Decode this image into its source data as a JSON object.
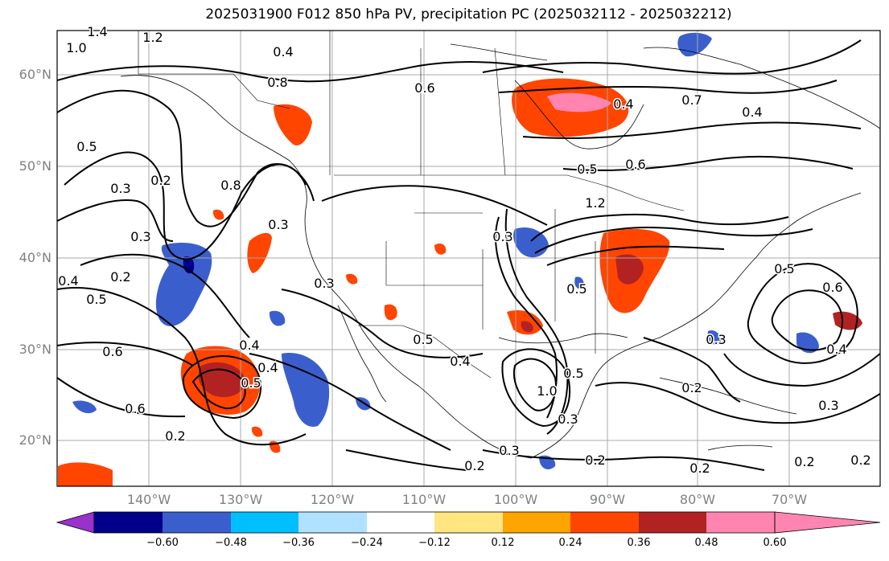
{
  "title": "2025031900 F012 850 hPa PV, precipitation PC (2025032112 - 2025032212)",
  "axes": {
    "lat_ticks": [
      "60°N",
      "50°N",
      "40°N",
      "30°N",
      "20°N"
    ],
    "lon_ticks": [
      "140°W",
      "130°W",
      "120°W",
      "110°W",
      "100°W",
      "90°W",
      "80°W",
      "70°W"
    ]
  },
  "colorbar": {
    "ticks": [
      "−0.60",
      "−0.48",
      "−0.36",
      "−0.24",
      "−0.12",
      "0.12",
      "0.24",
      "0.36",
      "0.48",
      "0.60"
    ],
    "colors": [
      "#9932cc",
      "#00008b",
      "#3a5fcd",
      "#00bfff",
      "#b0e2ff",
      "#ffffff",
      "#ffe680",
      "#ffa500",
      "#ff4500",
      "#b22222",
      "#ff85b0"
    ]
  },
  "contour_labels": [
    {
      "text": "1.4"
    },
    {
      "text": "1.2"
    },
    {
      "text": "1.0"
    },
    {
      "text": "0.8"
    },
    {
      "text": "0.6"
    },
    {
      "text": "0.4"
    },
    {
      "text": "0.5"
    },
    {
      "text": "0.3"
    },
    {
      "text": "0.2"
    },
    {
      "text": "0.8"
    },
    {
      "text": "0.3"
    },
    {
      "text": "0.2"
    },
    {
      "text": "0.5"
    },
    {
      "text": "0.4"
    },
    {
      "text": "0.6"
    },
    {
      "text": "0.4"
    },
    {
      "text": "0.4"
    },
    {
      "text": "0.5"
    },
    {
      "text": "0.6"
    },
    {
      "text": "0.2"
    },
    {
      "text": "0.3"
    },
    {
      "text": "0.3"
    },
    {
      "text": "0.5"
    },
    {
      "text": "0.4"
    },
    {
      "text": "0.3"
    },
    {
      "text": "1.0"
    },
    {
      "text": "0.3"
    },
    {
      "text": "0.5"
    },
    {
      "text": "0.3"
    },
    {
      "text": "0.2"
    },
    {
      "text": "0.5"
    },
    {
      "text": "0.6"
    },
    {
      "text": "0.2"
    },
    {
      "text": "1.2"
    },
    {
      "text": "0.5"
    },
    {
      "text": "0.4"
    },
    {
      "text": "0.7"
    },
    {
      "text": "0.4"
    },
    {
      "text": "0.2"
    },
    {
      "text": "0.3"
    },
    {
      "text": "0.2"
    },
    {
      "text": "0.5"
    },
    {
      "text": "0.6"
    },
    {
      "text": "0.4"
    },
    {
      "text": "0.2"
    },
    {
      "text": "0.3"
    },
    {
      "text": "0.2"
    }
  ]
}
